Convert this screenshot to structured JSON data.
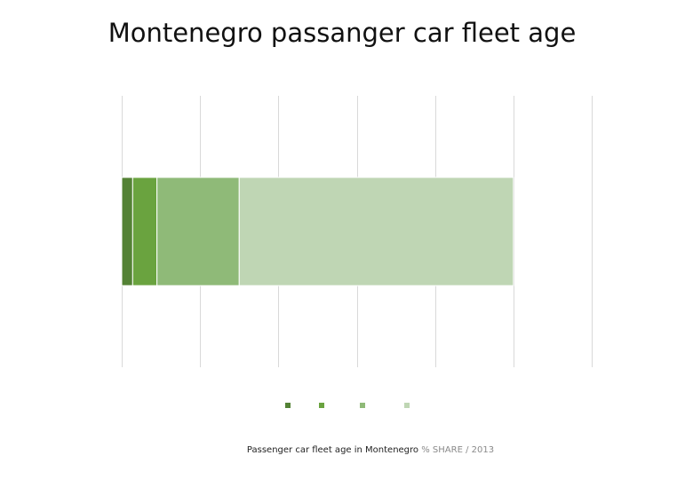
{
  "title": "Montenegro passanger car fleet age",
  "source_note": {
    "main": "Passenger car fleet age in Montenegro",
    "muted": "% SHARE / 2013"
  },
  "colors": {
    "gridline": "#d9d9d9",
    "segment_1": "#548235",
    "segment_2": "#6aa33f",
    "segment_3": "#8fba78",
    "segment_4": "#bfd6b4"
  },
  "chart_data": {
    "type": "bar",
    "orientation": "horizontal",
    "stacked": true,
    "categories": [
      ""
    ],
    "xlim": [
      0,
      60
    ],
    "grid": true,
    "legend": "bottom",
    "tick_labels_shown": false,
    "series": [
      {
        "values": [
          1.4
        ]
      },
      {
        "values": [
          3.1
        ]
      },
      {
        "values": [
          10.5
        ]
      },
      {
        "values": [
          35.0
        ]
      }
    ]
  }
}
